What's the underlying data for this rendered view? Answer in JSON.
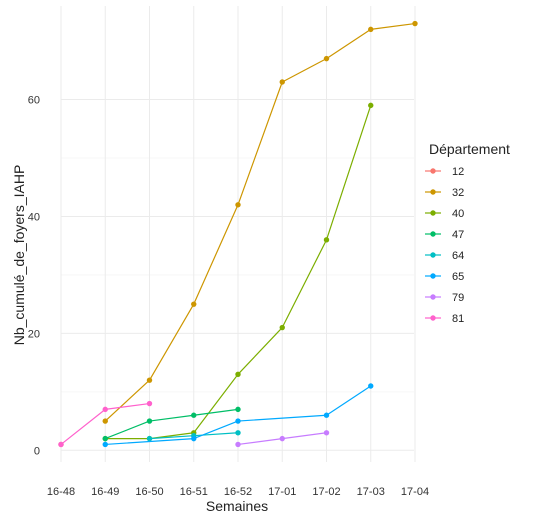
{
  "chart_data": {
    "type": "line",
    "title": "",
    "xlabel": "Semaines",
    "ylabel": "Nb_cumulé_de_foyers_IAHP",
    "x_categories": [
      "16-48",
      "16-49",
      "16-50",
      "16-51",
      "16-52",
      "17-01",
      "17-02",
      "17-03",
      "17-04"
    ],
    "y_ticks": [
      0,
      20,
      40,
      60
    ],
    "ylim": [
      -2,
      76
    ],
    "grid": true,
    "legend": {
      "title": "Département",
      "position": "right"
    },
    "series": [
      {
        "name": "12",
        "color": "#F8766D",
        "points": [
          [
            "16-48",
            1
          ]
        ]
      },
      {
        "name": "32",
        "color": "#CD9600",
        "points": [
          [
            "16-49",
            5
          ],
          [
            "16-50",
            12
          ],
          [
            "16-51",
            25
          ],
          [
            "16-52",
            42
          ],
          [
            "17-01",
            63
          ],
          [
            "17-02",
            67
          ],
          [
            "17-03",
            72
          ],
          [
            "17-04",
            73
          ]
        ]
      },
      {
        "name": "40",
        "color": "#7CAE00",
        "points": [
          [
            "16-49",
            2
          ],
          [
            "16-50",
            2
          ],
          [
            "16-51",
            3
          ],
          [
            "16-52",
            13
          ],
          [
            "17-01",
            21
          ],
          [
            "17-02",
            36
          ],
          [
            "17-03",
            59
          ]
        ]
      },
      {
        "name": "47",
        "color": "#00BE67",
        "points": [
          [
            "16-49",
            2
          ],
          [
            "16-50",
            5
          ],
          [
            "16-51",
            6
          ],
          [
            "16-52",
            7
          ]
        ]
      },
      {
        "name": "64",
        "color": "#00BFC4",
        "points": [
          [
            "16-50",
            2
          ],
          [
            "16-51",
            2.5
          ],
          [
            "16-52",
            3
          ]
        ]
      },
      {
        "name": "65",
        "color": "#00A9FF",
        "points": [
          [
            "16-49",
            1
          ],
          [
            "16-51",
            2
          ],
          [
            "16-52",
            5
          ],
          [
            "17-02",
            6
          ],
          [
            "17-03",
            11
          ]
        ]
      },
      {
        "name": "79",
        "color": "#C77CFF",
        "points": [
          [
            "16-52",
            1
          ],
          [
            "17-01",
            2
          ],
          [
            "17-02",
            3
          ]
        ]
      },
      {
        "name": "81",
        "color": "#FF61CC",
        "points": [
          [
            "16-48",
            1
          ],
          [
            "16-49",
            7
          ],
          [
            "16-50",
            8
          ]
        ]
      }
    ]
  }
}
